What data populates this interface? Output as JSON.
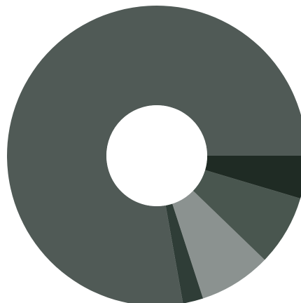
{
  "chart_data": {
    "type": "pie",
    "variant": "donut",
    "title": "",
    "legend": "none",
    "slices": [
      {
        "value": 77.8,
        "color": "#505a56"
      },
      {
        "value": 2.2,
        "color": "#2f3d37"
      },
      {
        "value": 7.8,
        "color": "#8b9290"
      },
      {
        "value": 7.6,
        "color": "#49564f"
      },
      {
        "value": 4.6,
        "color": "#1f2b24"
      }
    ],
    "start_angle_deg": 0,
    "direction": "counterclockwise"
  }
}
